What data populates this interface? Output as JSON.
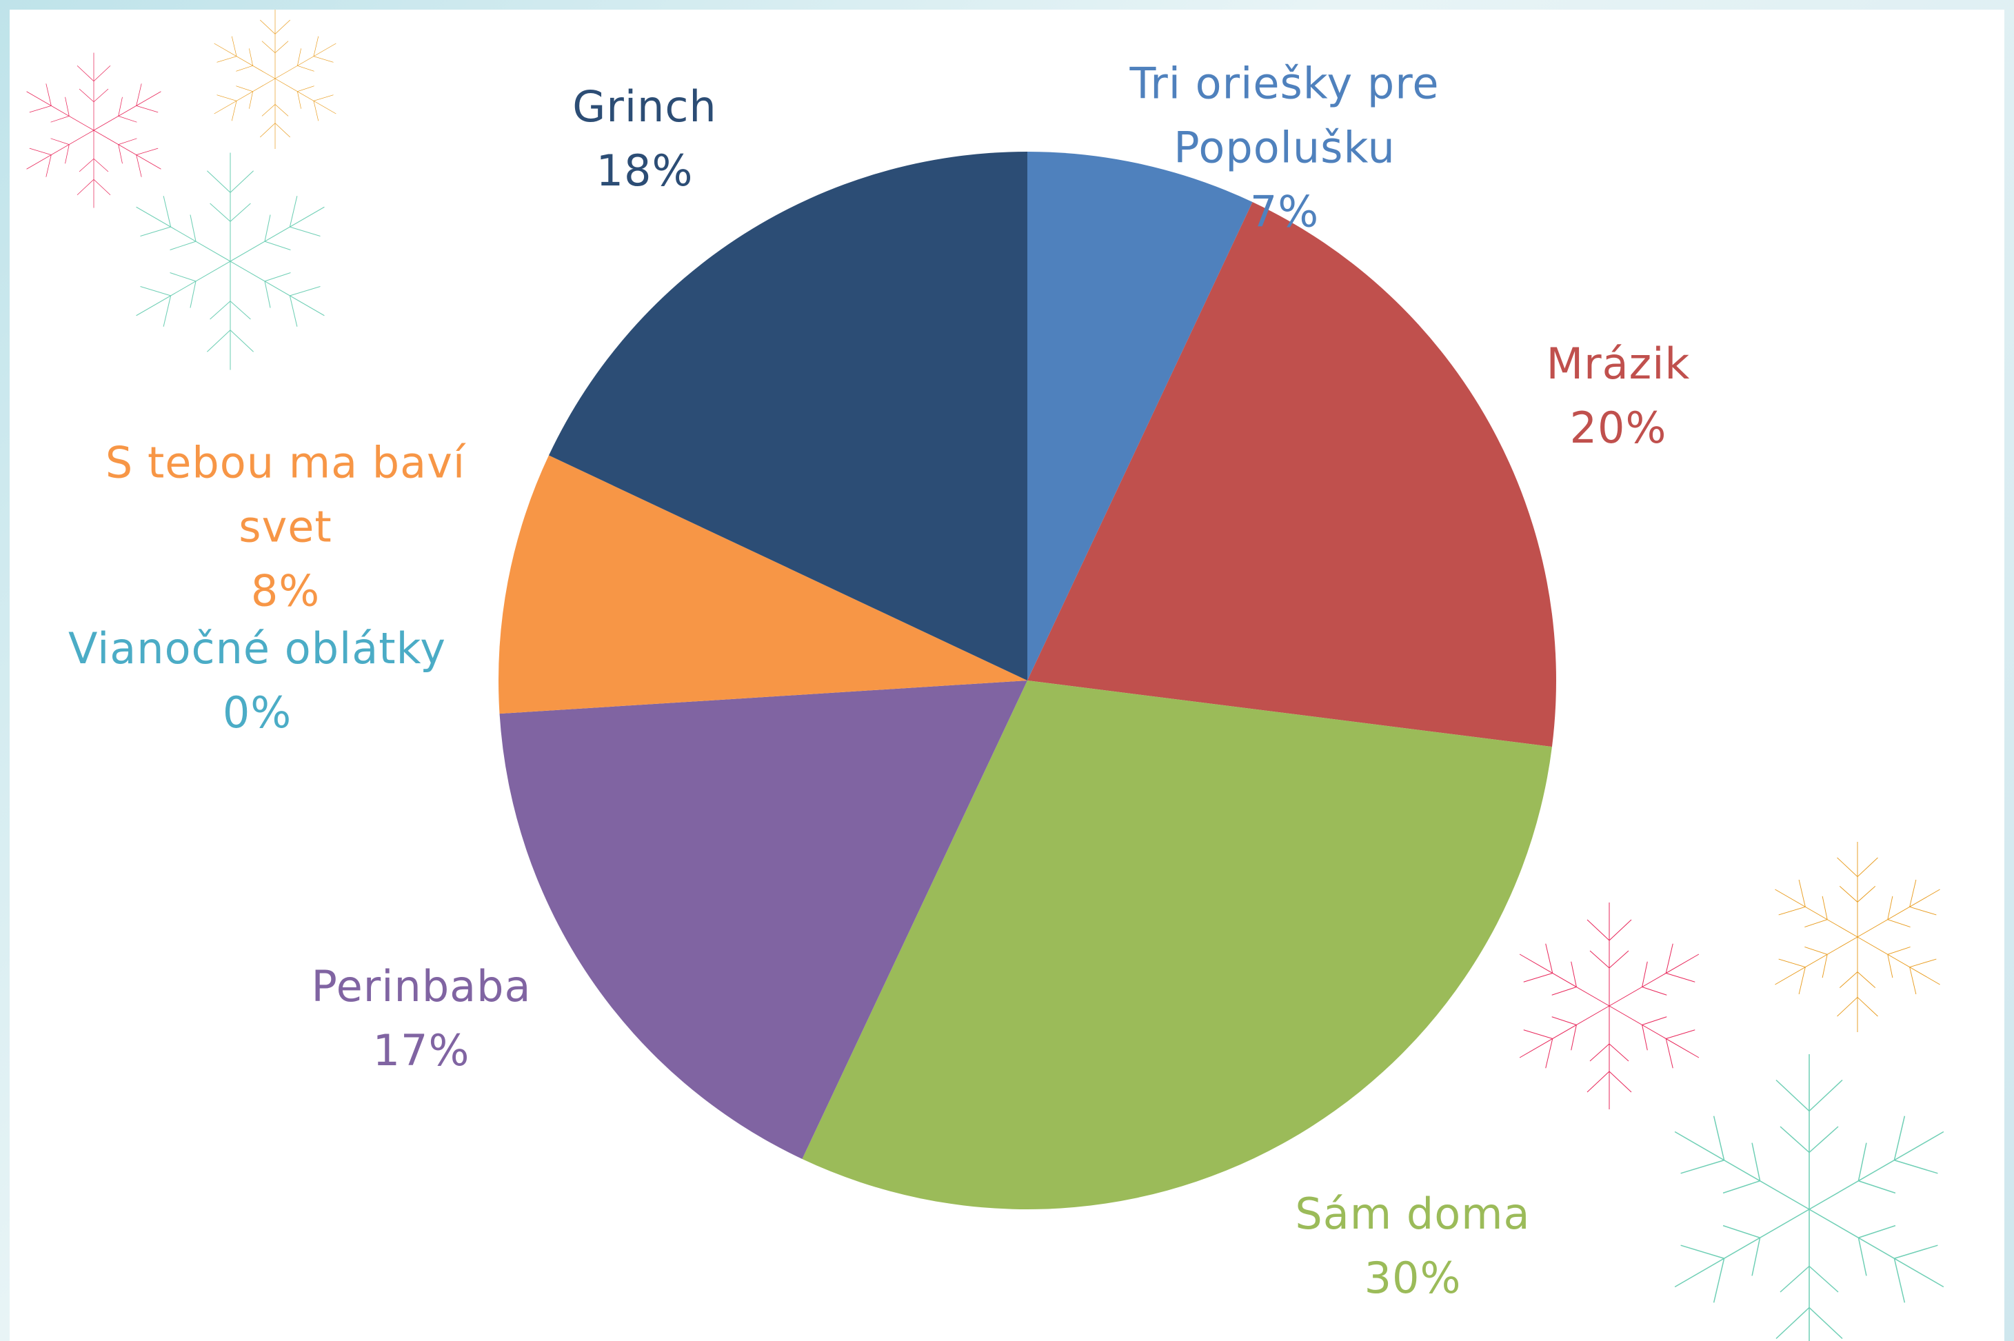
{
  "chart_data": {
    "type": "pie",
    "categories": [
      "Tri oriešky pre Popolušku",
      "Mrázik",
      "Sám doma",
      "Perinbaba",
      "Vianočné oblátky",
      "S tebou ma baví svet",
      "Grinch"
    ],
    "values": [
      7,
      20,
      30,
      17,
      0,
      8,
      18
    ],
    "value_labels": [
      "7%",
      "20%",
      "30%",
      "17%",
      "0%",
      "8%",
      "18%"
    ],
    "colors": [
      "#4f81bd",
      "#c0504d",
      "#9bbb59",
      "#8064a2",
      "#4bacc6",
      "#f79646",
      "#2c4d75"
    ]
  }
}
